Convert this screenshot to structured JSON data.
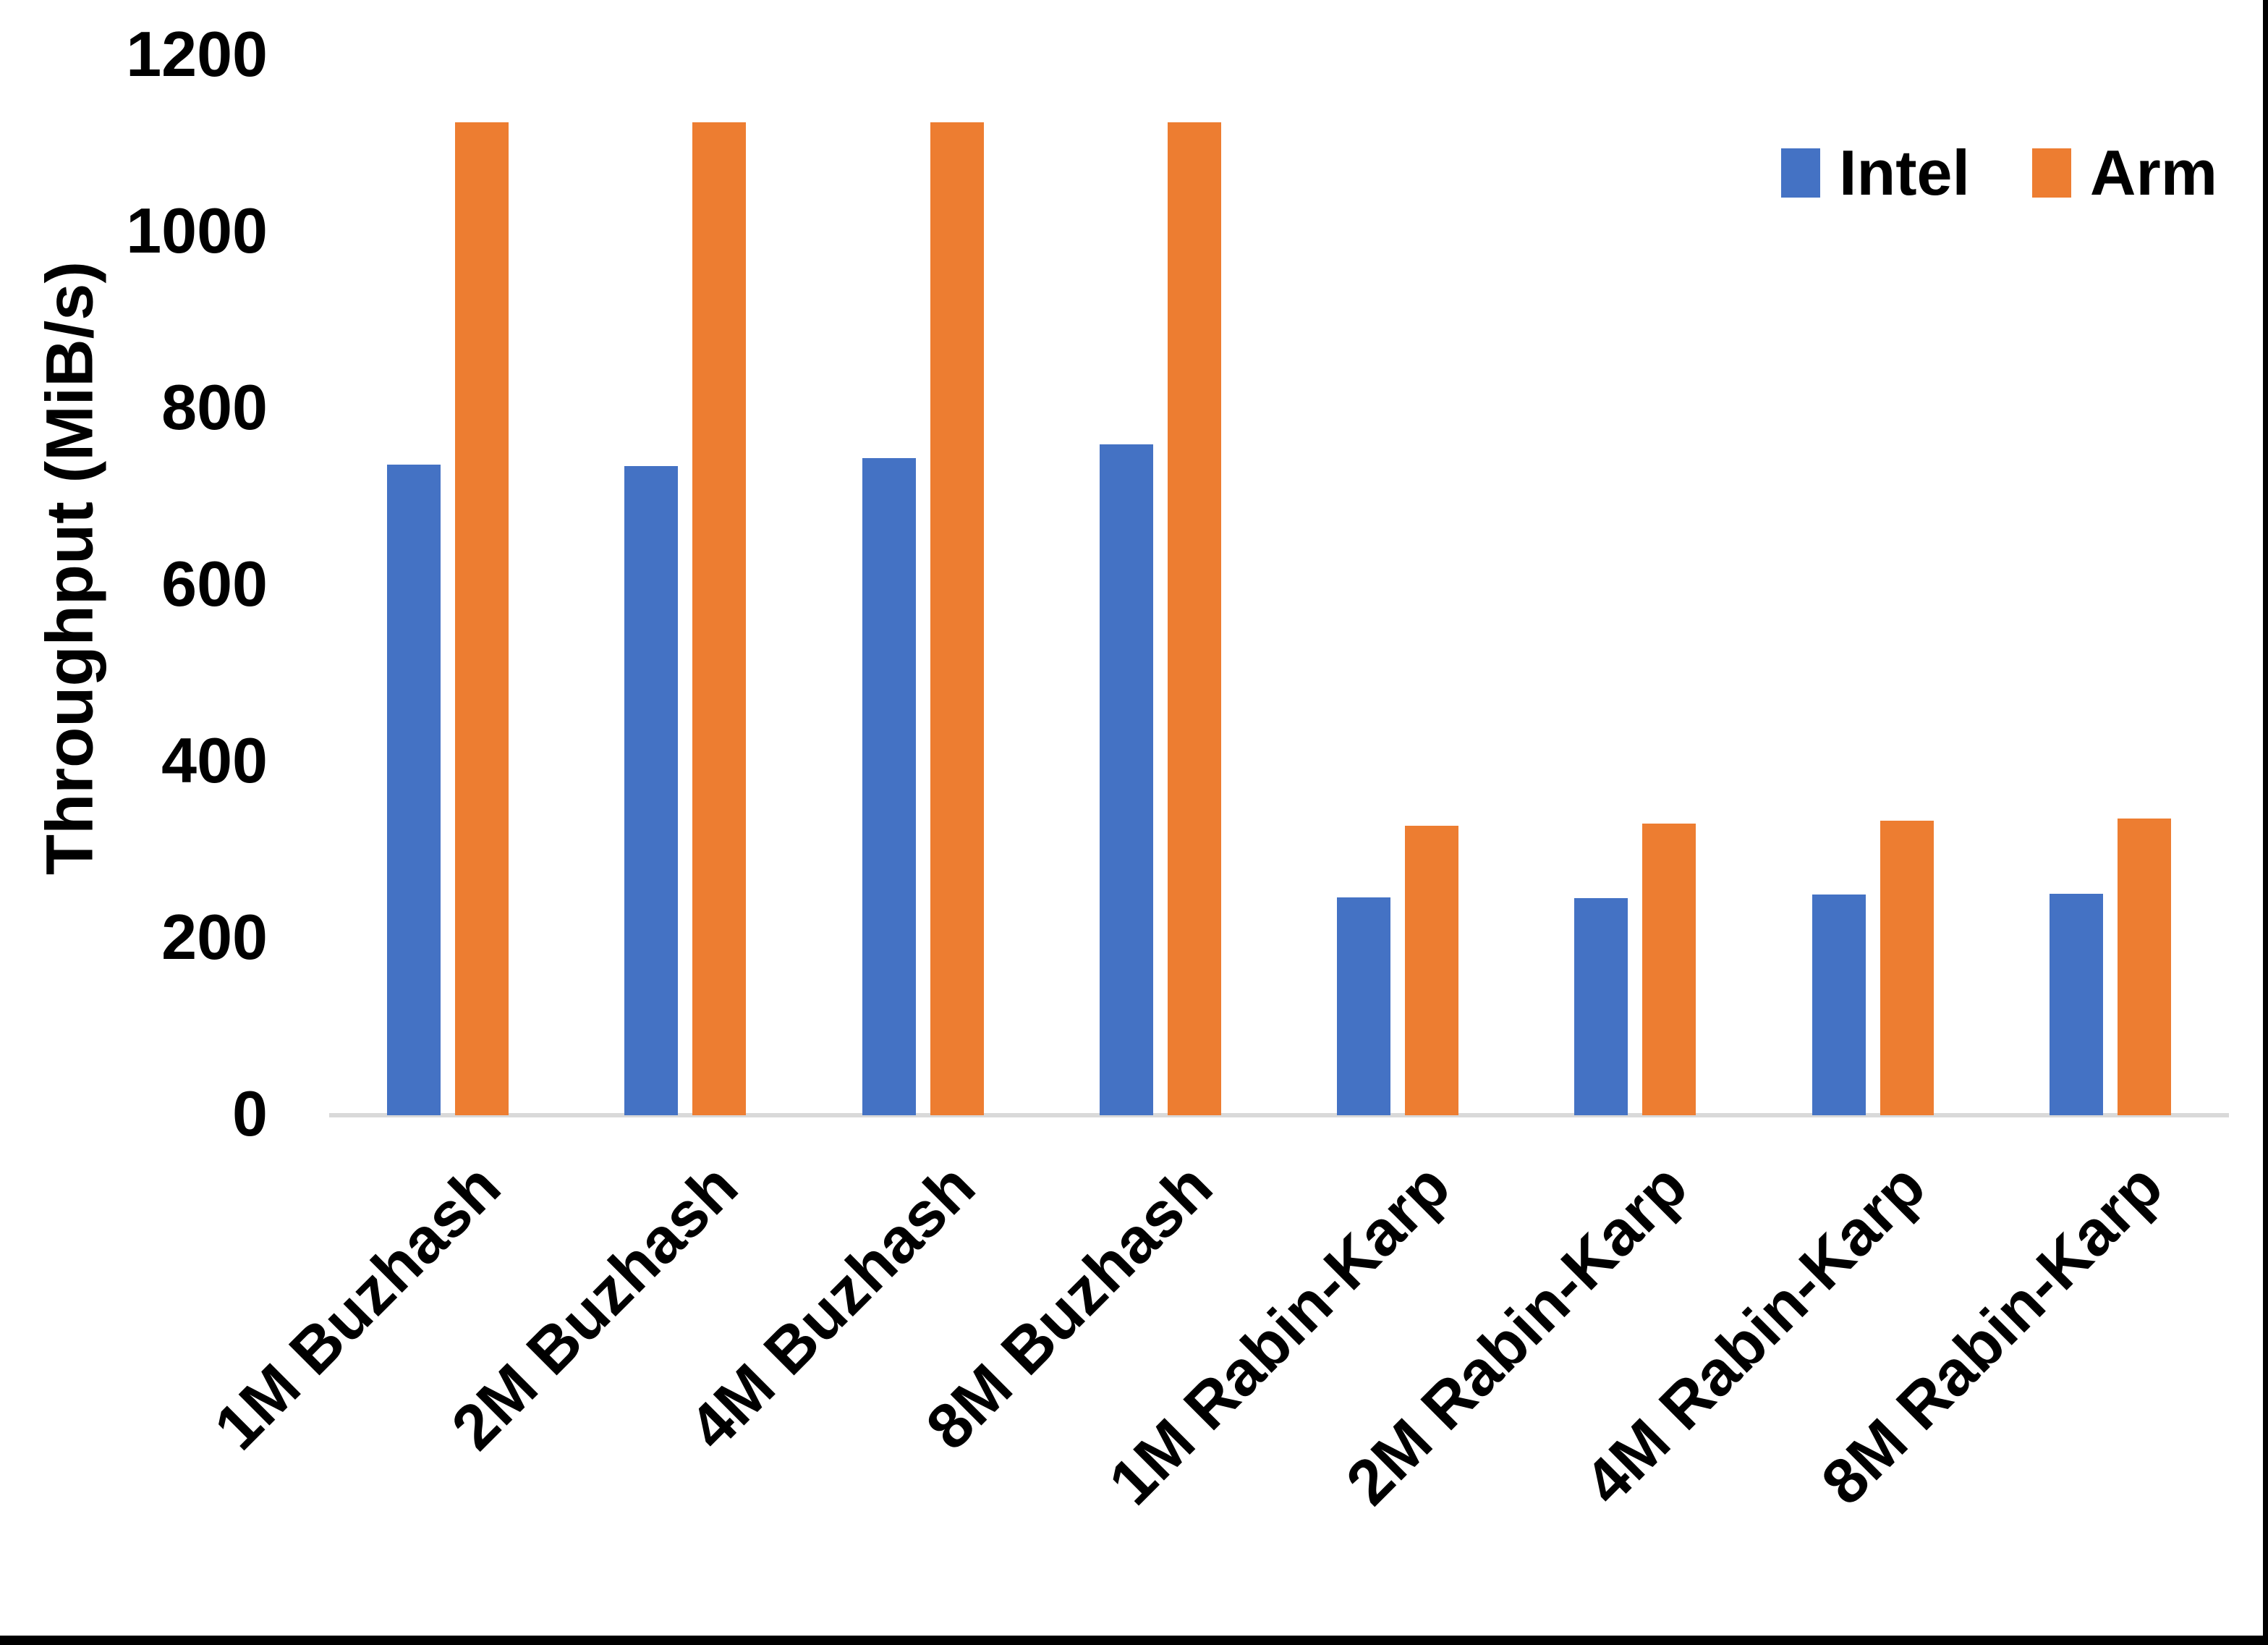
{
  "chart_data": {
    "type": "bar",
    "title": "",
    "ylabel": "Throughput (MiB/s)",
    "xlabel": "",
    "ylim": [
      0,
      1200
    ],
    "yticks": [
      0,
      200,
      400,
      600,
      800,
      1000,
      1200
    ],
    "grid": false,
    "legend_position": "top-right",
    "categories": [
      "1M Buzhash",
      "2M Buzhash",
      "4M Buzhash",
      "8M Buzhash",
      "1M Rabin-Karp",
      "2M Rabin-Karp",
      "4M Rabin-Karp",
      "8M Rabin-Karp"
    ],
    "series": [
      {
        "name": "Intel",
        "color": "#4472C4",
        "values": [
          737,
          735,
          744,
          760,
          247,
          246,
          250,
          251
        ]
      },
      {
        "name": "Arm",
        "color": "#ED7D31",
        "values": [
          1125,
          1125,
          1125,
          1125,
          328,
          330,
          334,
          336
        ]
      }
    ]
  },
  "colors": {
    "axis_line": "#D9D9D9",
    "text": "#000000",
    "background": "#FFFFFF",
    "frame_edge": "#000000"
  }
}
